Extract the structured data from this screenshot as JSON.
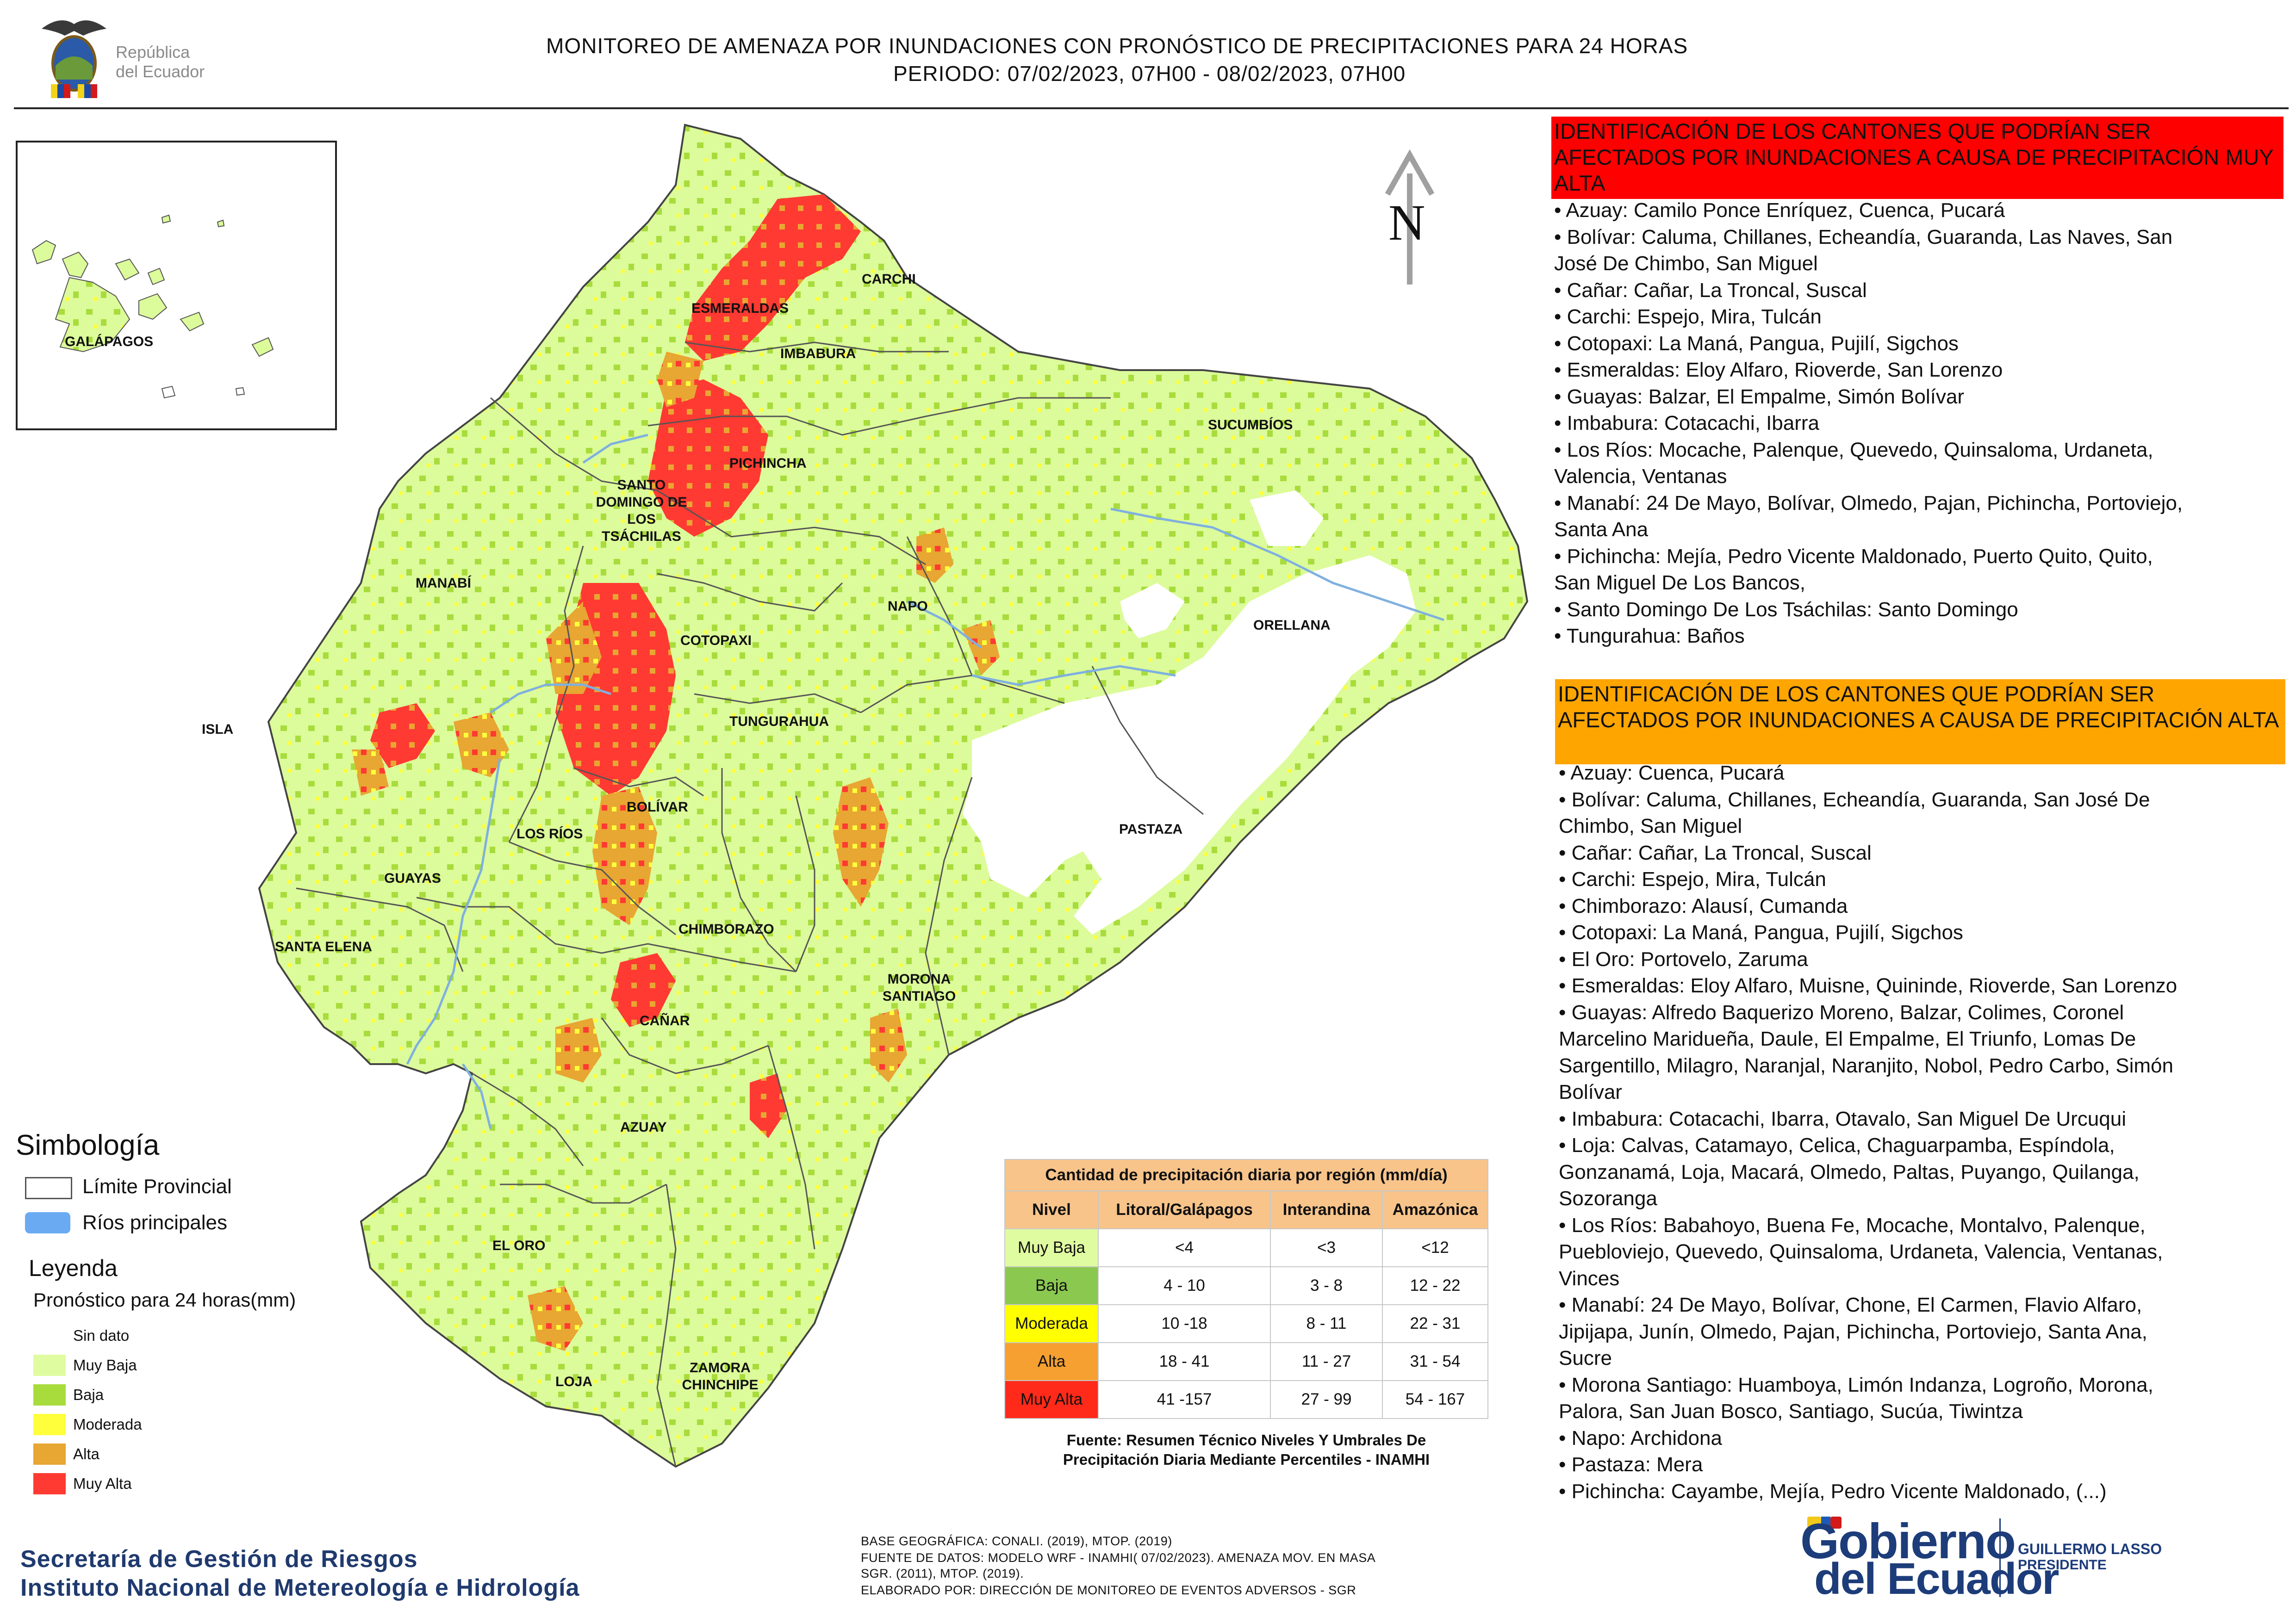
{
  "header": {
    "logo_text_line1": "República",
    "logo_text_line2": "del Ecuador",
    "title_line1": "MONITOREO DE AMENAZA POR INUNDACIONES  CON PRONÓSTICO DE  PRECIPITACIONES PARA 24 HORAS",
    "title_line2": "PERIODO: 07/02/2023, 07H00 - 08/02/2023, 07H00"
  },
  "map": {
    "north_label": "N",
    "inset_label": "GALÁPAGOS",
    "provinces": [
      {
        "id": "carchi",
        "name": "CARCHI"
      },
      {
        "id": "esmeraldas",
        "name": "ESMERALDAS"
      },
      {
        "id": "imbabura",
        "name": "IMBABURA"
      },
      {
        "id": "sucumbios",
        "name": "SUCUMBÍOS"
      },
      {
        "id": "pichincha",
        "name": "PICHINCHA"
      },
      {
        "id": "santo-domingo",
        "name": "SANTO DOMINGO DE LOS TSÁCHILAS"
      },
      {
        "id": "manabi",
        "name": "MANABÍ"
      },
      {
        "id": "napo",
        "name": "NAPO"
      },
      {
        "id": "orellana",
        "name": "ORELLANA"
      },
      {
        "id": "cotopaxi",
        "name": "COTOPAXI"
      },
      {
        "id": "isla",
        "name": "ISLA"
      },
      {
        "id": "tungurahua",
        "name": "TUNGURAHUA"
      },
      {
        "id": "bolivar",
        "name": "BOLÍVAR"
      },
      {
        "id": "los-rios",
        "name": "LOS RÍOS"
      },
      {
        "id": "pastaza",
        "name": "PASTAZA"
      },
      {
        "id": "guayas",
        "name": "GUAYAS"
      },
      {
        "id": "chimborazo",
        "name": "CHIMBORAZO"
      },
      {
        "id": "santa-elena",
        "name": "SANTA ELENA"
      },
      {
        "id": "morona-santiago",
        "name": "MORONA SANTIAGO"
      },
      {
        "id": "canar",
        "name": "CAÑAR"
      },
      {
        "id": "azuay",
        "name": "AZUAY"
      },
      {
        "id": "el-oro",
        "name": "EL ORO"
      },
      {
        "id": "loja",
        "name": "LOJA"
      },
      {
        "id": "zamora",
        "name": "ZAMORA CHINCHIPE"
      }
    ]
  },
  "legend": {
    "title": "Simbología",
    "limit_label": "Límite Provincial",
    "rivers_label": "Ríos principales",
    "leyenda_title": "Leyenda",
    "forecast_title": "Pronóstico para 24 horas(mm)",
    "classes": [
      {
        "label": "Sin dato",
        "color": "#ffffff"
      },
      {
        "label": " Muy Baja",
        "color": "#e0fca0"
      },
      {
        "label": "Baja",
        "color": "#a8dc3c"
      },
      {
        "label": "Moderada",
        "color": "#ffff3c"
      },
      {
        "label": "Alta",
        "color": "#e8a632"
      },
      {
        "label": "Muy Alta",
        "color": "#ff3a32"
      }
    ]
  },
  "table": {
    "title": "Cantidad de precipitación diaria por región (mm/día)",
    "columns": [
      "Nivel",
      "Litoral/Galápagos",
      "Interandina",
      "Amazónica"
    ],
    "rows": [
      {
        "level": "Muy Baja",
        "color": "#e0fca0",
        "litoral": "<4",
        "interandina": "<3",
        "amazonica": "<12"
      },
      {
        "level": "Baja",
        "color": "#8bc850",
        "litoral": "4 - 10",
        "interandina": "3 - 8",
        "amazonica": "12 - 22"
      },
      {
        "level": "Moderada",
        "color": "#ffff00",
        "litoral": "10 -18",
        "interandina": "8 - 11",
        "amazonica": "22 - 31"
      },
      {
        "level": "Alta",
        "color": "#f5a030",
        "litoral": "18 - 41",
        "interandina": "11 - 27",
        "amazonica": "31 - 54"
      },
      {
        "level": "Muy Alta",
        "color": "#ff2a1a",
        "litoral": "41 -157",
        "interandina": "27 - 99",
        "amazonica": "54 - 167"
      }
    ],
    "source_line1": "Fuente: Resumen Técnico Niveles Y Umbrales De",
    "source_line2": "Precipitación Diaria Mediante Percentiles - INAMHI"
  },
  "muy_alta": {
    "heading": "IDENTIFICACIÓN DE LOS CANTONES QUE PODRÍAN SER AFECTADOS POR INUNDACIONES  A CAUSA DE PRECIPITACIÓN MUY ALTA",
    "items": [
      "• Azuay: Camilo Ponce Enríquez, Cuenca, Pucará",
      "• Bolívar: Caluma, Chillanes, Echeandía, Guaranda, Las Naves, San",
      "José De Chimbo, San Miguel",
      "• Cañar: Cañar, La Troncal, Suscal",
      "• Carchi: Espejo, Mira, Tulcán",
      "• Cotopaxi: La Maná, Pangua, Pujilí, Sigchos",
      "• Esmeraldas: Eloy Alfaro, Rioverde, San Lorenzo",
      "• Guayas: Balzar, El Empalme, Simón Bolívar",
      "• Imbabura: Cotacachi, Ibarra",
      "• Los Ríos: Mocache, Palenque, Quevedo, Quinsaloma, Urdaneta,",
      "Valencia, Ventanas",
      "• Manabí: 24 De Mayo, Bolívar, Olmedo, Pajan, Pichincha, Portoviejo,",
      "Santa Ana",
      "• Pichincha: Mejía, Pedro Vicente Maldonado, Puerto Quito, Quito,",
      "San Miguel De Los Bancos,",
      "• Santo Domingo De Los Tsáchilas: Santo Domingo",
      "• Tungurahua: Baños"
    ]
  },
  "alta": {
    "heading": "IDENTIFICACIÓN DE LOS CANTONES QUE  PODRÍAN SER AFECTADOS POR INUNDACIONES  A CAUSA DE PRECIPITACIÓN ALTA",
    "items": [
      "• Azuay: Cuenca, Pucará",
      "• Bolívar: Caluma, Chillanes, Echeandía, Guaranda, San José De",
      "Chimbo, San Miguel",
      "• Cañar: Cañar, La Troncal, Suscal",
      "• Carchi: Espejo, Mira, Tulcán",
      "• Chimborazo: Alausí, Cumanda",
      "• Cotopaxi: La Maná, Pangua, Pujilí, Sigchos",
      "• El Oro: Portovelo, Zaruma",
      "• Esmeraldas: Eloy Alfaro, Muisne, Quininde, Rioverde, San Lorenzo",
      "• Guayas: Alfredo Baquerizo Moreno, Balzar, Colimes, Coronel",
      "Marcelino Maridueña, Daule, El Empalme, El Triunfo, Lomas De",
      "Sargentillo, Milagro, Naranjal, Naranjito, Nobol, Pedro Carbo, Simón",
      "Bolívar",
      "• Imbabura: Cotacachi, Ibarra, Otavalo, San Miguel De Urcuqui",
      "• Loja: Calvas, Catamayo, Celica, Chaguarpamba, Espíndola,",
      "Gonzanamá, Loja, Macará, Olmedo, Paltas, Puyango, Quilanga,",
      "Sozoranga",
      "• Los Ríos: Babahoyo, Buena Fe, Mocache, Montalvo, Palenque,",
      "Puebloviejo, Quevedo, Quinsaloma, Urdaneta, Valencia, Ventanas,",
      "Vinces",
      "• Manabí: 24 De Mayo, Bolívar, Chone, El Carmen, Flavio Alfaro,",
      "Jipijapa, Junín, Olmedo, Pajan, Pichincha, Portoviejo, Santa Ana,",
      "Sucre",
      "• Morona Santiago: Huamboya, Limón Indanza, Logroño, Morona,",
      "Palora, San Juan Bosco, Santiago, Sucúa, Tiwintza",
      "• Napo: Archidona",
      "• Pastaza: Mera",
      "• Pichincha: Cayambe, Mejía, Pedro Vicente Maldonado, (...)"
    ]
  },
  "footer": {
    "org_line1": "Secretaría de Gestión de Riesgos",
    "org_line2": "Instituto Nacional de Metereología e Hidrología",
    "credit_line1": "BASE GEOGRÁFICA: CONALI. (2019), MTOP. (2019)",
    "credit_line2": "FUENTE DE DATOS: MODELO WRF - INAMHI( 07/02/2023).  AMENAZA MOV. EN MASA",
    "credit_line3": "SGR. (2011), MTOP. (2019).",
    "credit_line4": "ELABORADO POR: DIRECCIÓN DE MONITOREO DE EVENTOS ADVERSOS - SGR",
    "gob_line1": "Gobierno",
    "gob_line2": "del Ecuador",
    "pres_line1": "GUILLERMO LASSO",
    "pres_line2": "PRESIDENTE"
  }
}
